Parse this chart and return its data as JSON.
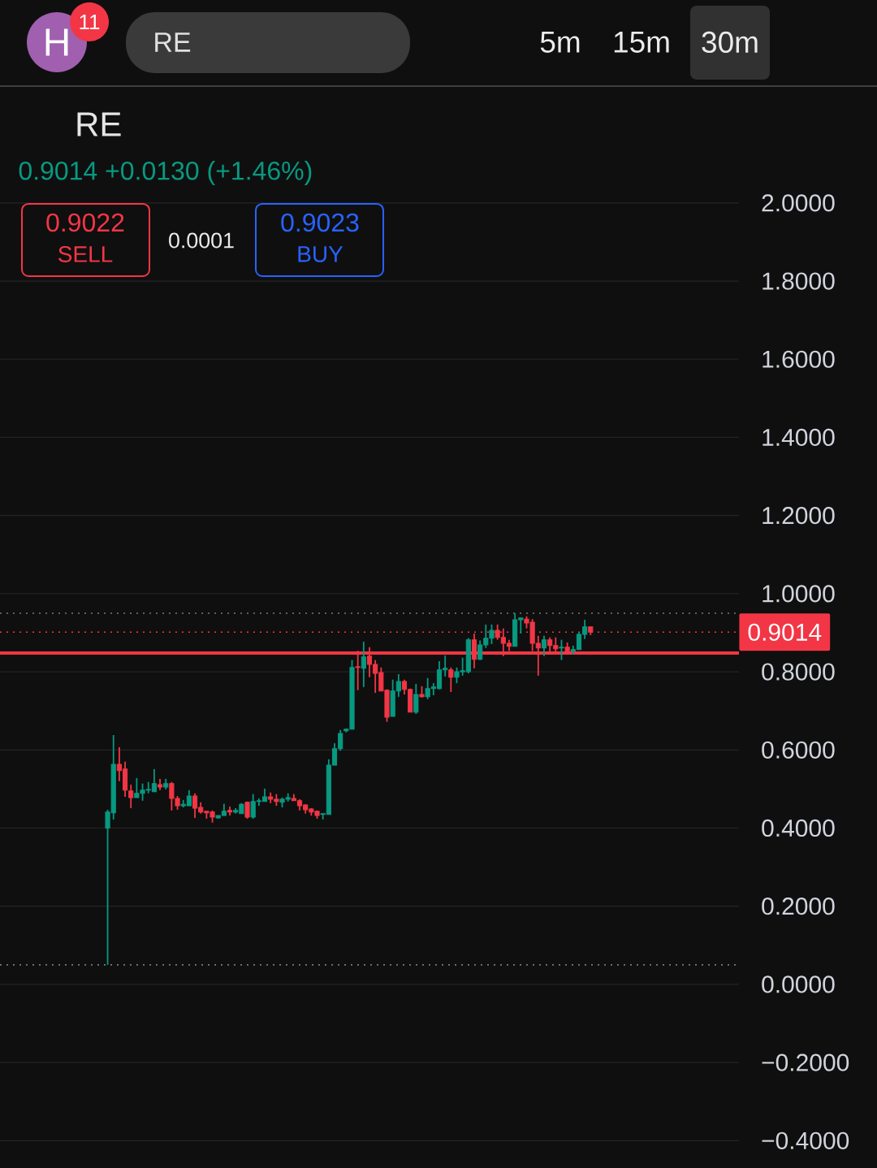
{
  "chart_data": {
    "type": "candlestick",
    "title": "RE",
    "annotations": [
      "RE",
      "H",
      "11",
      "5m",
      "15m",
      "30m",
      "0.9014 +0.0130 (+1.46%)",
      "0.9022",
      "SELL",
      "0.0001",
      "0.9023",
      "BUY"
    ],
    "categories": [
      null,
      null,
      null,
      null,
      null,
      null,
      null,
      null,
      null,
      null,
      null,
      null,
      null,
      null,
      null,
      null,
      null,
      null,
      null,
      null,
      null,
      null,
      null,
      null,
      null,
      null,
      null,
      null,
      null,
      null,
      null,
      null,
      null,
      null,
      null,
      null,
      null,
      null,
      null,
      null,
      null,
      null,
      null,
      null,
      null,
      null,
      null,
      null,
      null,
      null,
      null,
      null,
      null,
      null,
      null,
      null,
      null,
      null,
      null,
      null,
      null,
      null,
      null,
      null,
      null,
      null,
      null,
      null,
      null,
      null,
      null,
      null,
      null,
      null,
      null,
      null,
      null,
      null,
      null,
      null,
      null,
      null,
      null,
      null,
      null,
      null,
      null,
      null,
      null,
      null,
      null,
      null,
      null,
      null,
      null,
      null,
      null,
      null,
      null,
      null,
      null,
      null,
      null,
      null,
      null,
      null,
      null,
      null,
      null,
      null,
      null,
      null,
      null,
      null,
      null,
      null,
      null,
      null,
      null,
      null,
      null,
      null,
      null,
      null,
      null,
      null,
      null
    ],
    "ohlc": [
      null,
      null,
      null,
      null,
      null,
      null,
      null,
      null,
      null,
      null,
      null,
      null,
      null,
      null,
      null,
      null,
      null,
      null,
      [
        0.4,
        0.447,
        0.05,
        0.441
      ],
      [
        0.439,
        0.638,
        0.422,
        0.563
      ],
      [
        0.563,
        0.607,
        0.52,
        0.547
      ],
      [
        0.551,
        0.57,
        0.48,
        0.497
      ],
      [
        0.495,
        0.511,
        0.451,
        0.478
      ],
      [
        0.478,
        0.528,
        0.478,
        0.489
      ],
      [
        0.489,
        0.514,
        0.47,
        0.497
      ],
      [
        0.497,
        0.518,
        0.489,
        0.499
      ],
      [
        0.493,
        0.551,
        0.493,
        0.514
      ],
      [
        0.511,
        0.526,
        0.497,
        0.505
      ],
      [
        0.505,
        0.526,
        0.499,
        0.514
      ],
      [
        0.514,
        0.518,
        0.445,
        0.476
      ],
      [
        0.476,
        0.482,
        0.447,
        0.457
      ],
      [
        0.457,
        0.472,
        0.453,
        0.461
      ],
      [
        0.457,
        0.497,
        0.457,
        0.482
      ],
      [
        0.482,
        0.489,
        0.426,
        0.451
      ],
      [
        0.453,
        0.466,
        0.437,
        0.441
      ],
      [
        0.443,
        0.443,
        0.424,
        0.439
      ],
      [
        0.441,
        0.445,
        0.414,
        0.428
      ],
      [
        0.426,
        0.432,
        0.424,
        0.432
      ],
      [
        0.432,
        0.462,
        0.432,
        0.443
      ],
      [
        0.445,
        0.455,
        0.432,
        0.441
      ],
      [
        0.441,
        0.451,
        0.437,
        0.445
      ],
      [
        0.437,
        0.464,
        0.437,
        0.461
      ],
      [
        0.466,
        0.468,
        0.424,
        0.428
      ],
      [
        0.428,
        0.487,
        0.424,
        0.468
      ],
      [
        0.468,
        0.476,
        0.457,
        0.47
      ],
      [
        0.468,
        0.501,
        0.468,
        0.48
      ],
      [
        0.48,
        0.491,
        0.464,
        0.474
      ],
      [
        0.474,
        0.487,
        0.457,
        0.468
      ],
      [
        0.466,
        0.478,
        0.453,
        0.474
      ],
      [
        0.474,
        0.489,
        0.468,
        0.478
      ],
      [
        0.476,
        0.487,
        0.47,
        0.47
      ],
      [
        0.47,
        0.474,
        0.445,
        0.457
      ],
      [
        0.459,
        0.461,
        0.437,
        0.447
      ],
      [
        0.449,
        0.451,
        0.432,
        0.441
      ],
      [
        0.443,
        0.445,
        0.424,
        0.432
      ],
      [
        0.435,
        0.437,
        0.422,
        0.437
      ],
      [
        0.435,
        0.576,
        0.435,
        0.561
      ],
      [
        0.561,
        0.617,
        0.561,
        0.603
      ],
      [
        0.603,
        0.651,
        0.598,
        0.642
      ],
      [
        0.649,
        0.655,
        0.645,
        0.653
      ],
      [
        0.653,
        0.83,
        0.653,
        0.811
      ],
      [
        0.813,
        0.854,
        0.753,
        0.811
      ],
      [
        0.809,
        0.877,
        0.761,
        0.838
      ],
      [
        0.84,
        0.863,
        0.786,
        0.819
      ],
      [
        0.819,
        0.83,
        0.746,
        0.796
      ],
      [
        0.798,
        0.811,
        0.751,
        0.751
      ],
      [
        0.753,
        0.755,
        0.672,
        0.684
      ],
      [
        0.686,
        0.78,
        0.686,
        0.751
      ],
      [
        0.751,
        0.794,
        0.736,
        0.775
      ],
      [
        0.775,
        0.78,
        0.742,
        0.755
      ],
      [
        0.755,
        0.757,
        0.697,
        0.697
      ],
      [
        0.697,
        0.769,
        0.692,
        0.742
      ],
      [
        0.742,
        0.763,
        0.734,
        0.736
      ],
      [
        0.736,
        0.784,
        0.73,
        0.757
      ],
      [
        0.757,
        0.771,
        0.74,
        0.761
      ],
      [
        0.757,
        0.827,
        0.755,
        0.805
      ],
      [
        0.805,
        0.842,
        0.788,
        0.809
      ],
      [
        0.805,
        0.811,
        0.748,
        0.786
      ],
      [
        0.786,
        0.811,
        0.771,
        0.8
      ],
      [
        0.8,
        0.836,
        0.79,
        0.803
      ],
      [
        0.8,
        0.886,
        0.796,
        0.882
      ],
      [
        0.882,
        0.898,
        0.809,
        0.832
      ],
      [
        0.832,
        0.88,
        0.83,
        0.869
      ],
      [
        0.869,
        0.921,
        0.861,
        0.886
      ],
      [
        0.886,
        0.921,
        0.871,
        0.906
      ],
      [
        0.906,
        0.921,
        0.882,
        0.888
      ],
      [
        0.888,
        0.911,
        0.84,
        0.873
      ],
      [
        0.873,
        0.882,
        0.853,
        0.865
      ],
      [
        0.865,
        0.95,
        0.865,
        0.933
      ],
      [
        0.933,
        0.938,
        0.898,
        0.938
      ],
      [
        0.935,
        0.942,
        0.911,
        0.925
      ],
      [
        0.927,
        0.935,
        0.853,
        0.873
      ],
      [
        0.873,
        0.892,
        0.79,
        0.861
      ],
      [
        0.861,
        0.892,
        0.84,
        0.882
      ],
      [
        0.882,
        0.888,
        0.846,
        0.867
      ],
      [
        0.867,
        0.888,
        0.846,
        0.859
      ],
      [
        0.861,
        0.882,
        0.83,
        0.863
      ],
      [
        0.863,
        0.875,
        0.848,
        0.853
      ],
      [
        0.853,
        0.867,
        0.844,
        0.857
      ],
      [
        0.857,
        0.902,
        0.857,
        0.896
      ],
      [
        0.896,
        0.933,
        0.884,
        0.915
      ],
      [
        0.915,
        0.915,
        0.894,
        0.9014
      ],
      null,
      null,
      null,
      null,
      null,
      null,
      null,
      null,
      null,
      null,
      null,
      null,
      null,
      null,
      null,
      null,
      null,
      null,
      null,
      null,
      null,
      null,
      null,
      null,
      null
    ],
    "ylim": [
      -0.47,
      2.297
    ],
    "yticks": [
      {
        "value": -0.4,
        "label": "−0.4000"
      },
      {
        "value": -0.2,
        "label": "−0.2000"
      },
      {
        "value": 0,
        "label": "0.0000"
      },
      {
        "value": 0.2,
        "label": "0.2000"
      },
      {
        "value": 0.4,
        "label": "0.4000"
      },
      {
        "value": 0.6,
        "label": "0.6000"
      },
      {
        "value": 0.8,
        "label": "0.8000"
      },
      {
        "value": 1.0,
        "label": "1.0000"
      },
      {
        "value": 1.2,
        "label": "1.2000"
      },
      {
        "value": 1.4,
        "label": "1.4000"
      },
      {
        "value": 1.6,
        "label": "1.6000"
      },
      {
        "value": 1.8,
        "label": "1.8000"
      },
      {
        "value": 2.0,
        "label": "2.0000"
      }
    ],
    "ref_lines": [
      {
        "axis": "y",
        "value": 0.95,
        "color": "#7a7a7a",
        "line_style": "dotted"
      },
      {
        "axis": "y",
        "value": 0.05,
        "color": "#7a7a7a",
        "line_style": "dotted"
      },
      {
        "axis": "y",
        "value": 0.9014,
        "label": "0.9014",
        "color": "#f23645",
        "line_style": "dotted"
      },
      {
        "axis": "y",
        "value": 0.848,
        "color": "#f23645",
        "line_style": "solid"
      }
    ],
    "grid": "y",
    "tick_labels": "y"
  }
}
